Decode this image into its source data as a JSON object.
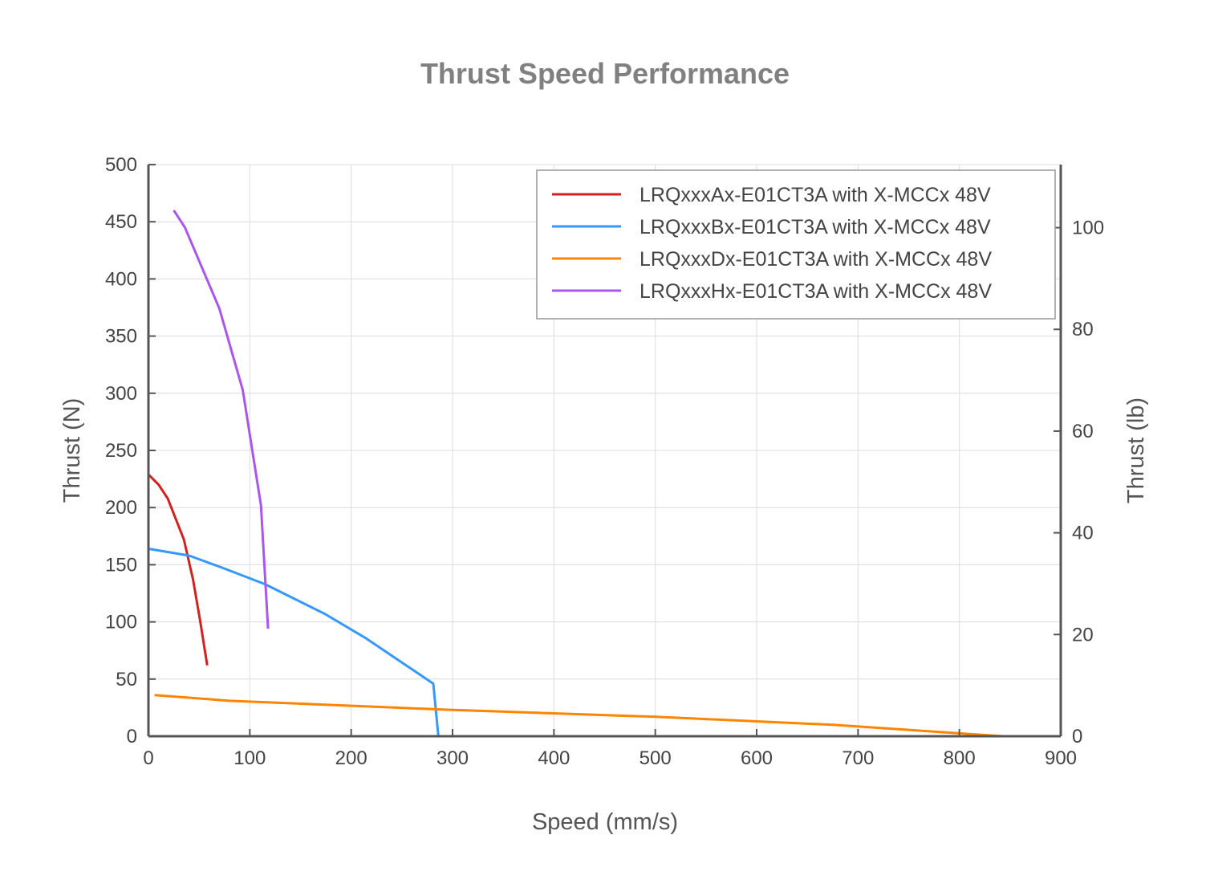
{
  "chart_data": {
    "type": "line",
    "title": "Thrust Speed Performance",
    "xlabel": "Speed (mm/s)",
    "ylabel": "Thrust (N)",
    "y2label": "Thrust (lb)",
    "xlim": [
      0,
      900
    ],
    "ylim": [
      0,
      500
    ],
    "y2lim": [
      0,
      112.4
    ],
    "xticks": [
      0,
      100,
      200,
      300,
      400,
      500,
      600,
      700,
      800,
      900
    ],
    "yticks": [
      0,
      50,
      100,
      150,
      200,
      250,
      300,
      350,
      400,
      450,
      500
    ],
    "y2ticks": [
      0,
      20,
      40,
      60,
      80,
      100
    ],
    "grid": true,
    "legend_position": "top-right",
    "series": [
      {
        "name": "LRQxxxAx-E01CT3A with X-MCCx 48V",
        "color": "#d42020",
        "x": [
          0,
          10,
          19,
          35,
          44,
          51,
          58
        ],
        "y": [
          229,
          220,
          208,
          172,
          137,
          101,
          62
        ]
      },
      {
        "name": "LRQxxxBx-E01CT3A with X-MCCx 48V",
        "color": "#3399ff",
        "x": [
          0,
          40,
          71,
          115,
          174,
          214,
          281,
          286
        ],
        "y": [
          164,
          158,
          148,
          133,
          107,
          86,
          46,
          0
        ]
      },
      {
        "name": "LRQxxxDx-E01CT3A with X-MCCx 48V",
        "color": "#ff8400",
        "x": [
          6,
          80,
          300,
          500,
          675,
          843
        ],
        "y": [
          36,
          31,
          23,
          17,
          10,
          0
        ]
      },
      {
        "name": "LRQxxxHx-E01CT3A with X-MCCx 48V",
        "color": "#aa55f0",
        "x": [
          25,
          36,
          70,
          93,
          111,
          118
        ],
        "y": [
          460,
          445,
          374,
          303,
          202,
          94
        ]
      }
    ]
  }
}
